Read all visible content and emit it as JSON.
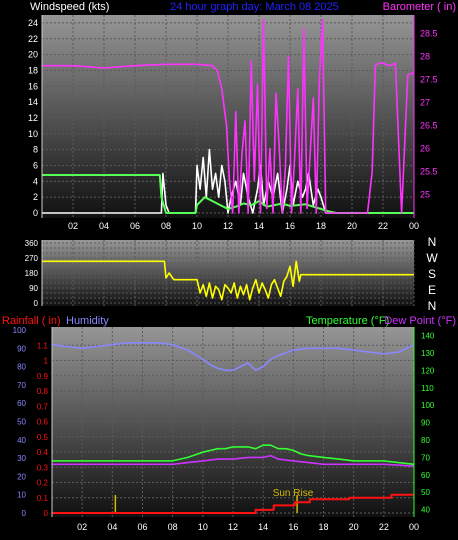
{
  "header": {
    "windspeed_label": "Windspeed (kts)",
    "graph_title": "24 hour graph day:  March 08 2025",
    "barometer_label": "Barometer ( in)"
  },
  "middle": {
    "compass_labels": [
      "N",
      "W",
      "S",
      "E",
      "N"
    ]
  },
  "bottom_header": {
    "rainfall_label": "Rainfall ( in)",
    "humidity_label": "Humidity",
    "temperature_label": "Temperature (°F)",
    "dewpoint_label": "Dew Point (°F)"
  },
  "colors": {
    "windspeed": "#ffffff",
    "wind_average": "#55ff55",
    "barometer": "#ff33ff",
    "direction": "#ffff00",
    "rainfall": "#ff1111",
    "humidity": "#8888ff",
    "temperature": "#33ff33",
    "dewpoint": "#cc33ff",
    "title": "#2222ff",
    "sunrise_marker": "#d4b800"
  },
  "chart_data": [
    {
      "type": "line",
      "title": "24 hour graph day:  March 08 2025",
      "x_ticks": [
        "02",
        "04",
        "06",
        "08",
        "10",
        "12",
        "14",
        "16",
        "18",
        "20",
        "22",
        "00"
      ],
      "xlim": [
        0,
        24
      ],
      "grid": true,
      "series": [
        {
          "name": "Windspeed (kts)",
          "axis": "left",
          "x": [
            0,
            7.7,
            7.8,
            8.0,
            8.2,
            8.5,
            9.0,
            9.5,
            9.9,
            10.0,
            10.2,
            10.4,
            10.6,
            10.8,
            11.0,
            11.2,
            11.4,
            11.6,
            11.8,
            12.0,
            12.2,
            12.5,
            12.8,
            13.0,
            13.3,
            13.6,
            13.9,
            14.1,
            14.3,
            14.6,
            14.9,
            15.2,
            15.5,
            15.8,
            16.0,
            16.2,
            16.5,
            16.8,
            17.0,
            17.2,
            17.5,
            17.8,
            18.0,
            18.3,
            18.6,
            19.0,
            24
          ],
          "values": [
            0,
            0,
            5,
            1,
            0,
            0,
            0,
            0,
            0,
            6,
            3,
            7,
            2,
            8,
            3,
            5,
            2,
            6,
            4,
            0,
            2,
            4,
            1,
            5,
            2,
            0,
            3,
            6,
            1,
            4,
            2,
            5,
            0,
            3,
            6,
            1,
            4,
            2,
            3,
            5,
            1,
            3,
            2,
            0,
            0,
            0,
            0
          ]
        },
        {
          "name": "Wind average",
          "axis": "left",
          "x": [
            0,
            7.6,
            7.7,
            8.0,
            9.9,
            10.0,
            10.5,
            11.0,
            11.5,
            12.0,
            12.5,
            13.0,
            13.5,
            14.0,
            14.5,
            15.0,
            15.5,
            16.0,
            16.5,
            17.0,
            17.5,
            18.0,
            18.5,
            19.0,
            24
          ],
          "values": [
            4.8,
            4.8,
            2,
            0,
            0,
            1,
            2,
            1.5,
            1,
            0.5,
            0.8,
            1.2,
            1,
            1.5,
            0.8,
            1,
            1.2,
            0.9,
            1,
            1.1,
            0.8,
            0.5,
            0.2,
            0,
            0
          ]
        },
        {
          "name": "Barometer ( in)",
          "axis": "right",
          "x": [
            0,
            2,
            4,
            6,
            8,
            10,
            11,
            11.3,
            11.6,
            11.9,
            12.1,
            12.3,
            12.5,
            12.7,
            12.9,
            13.1,
            13.3,
            13.5,
            13.7,
            13.9,
            14.1,
            14.3,
            14.5,
            14.7,
            14.9,
            15.1,
            15.3,
            15.5,
            15.7,
            15.9,
            16.1,
            16.3,
            16.5,
            16.7,
            16.9,
            17.1,
            17.3,
            17.5,
            17.7,
            17.9,
            18.1,
            18.3,
            18.5,
            18.7,
            18.9,
            19.3,
            20,
            21,
            21.3,
            21.5,
            21.7,
            22,
            22.4,
            22.8,
            23.2,
            23.6,
            24
          ],
          "values": [
            27.8,
            27.8,
            27.75,
            27.8,
            27.83,
            27.83,
            27.8,
            27.7,
            27.3,
            26.5,
            25.3,
            24.6,
            26.8,
            24.6,
            25.9,
            26.6,
            24.6,
            27.9,
            25.3,
            27.4,
            24.6,
            28.8,
            24.7,
            26.0,
            24.6,
            27.2,
            26.1,
            24.6,
            25.6,
            28.0,
            24.6,
            25.8,
            27.3,
            24.6,
            28.6,
            24.7,
            25.9,
            27.1,
            24.6,
            27.5,
            28.8,
            24.6,
            24.6,
            24.6,
            24.6,
            24.6,
            24.6,
            24.6,
            25.5,
            27.8,
            27.85,
            27.85,
            27.8,
            27.85,
            24.6,
            27.6,
            27.65
          ]
        }
      ],
      "ylim_left": [
        0,
        25
      ],
      "yticks_left": [
        "0",
        "2",
        "4",
        "6",
        "8",
        "10",
        "12",
        "14",
        "16",
        "18",
        "20",
        "22",
        "24"
      ],
      "ylim_right": [
        24.6,
        28.9
      ],
      "yticks_right": [
        "25",
        "25.5",
        "26",
        "26.5",
        "27",
        "27.5",
        "28",
        "28.5"
      ]
    },
    {
      "type": "scatter",
      "xlim": [
        0,
        24
      ],
      "series": [
        {
          "name": "Wind direction",
          "axis": "left",
          "x": [
            0,
            7.9,
            8.0,
            8.2,
            8.5,
            9.0,
            9.5,
            10.0,
            10.2,
            10.4,
            10.6,
            10.8,
            11.0,
            11.2,
            11.4,
            11.6,
            11.8,
            12.0,
            12.2,
            12.4,
            12.6,
            12.8,
            13.0,
            13.2,
            13.4,
            13.6,
            13.8,
            14.0,
            14.2,
            14.4,
            14.6,
            14.8,
            15.0,
            15.2,
            15.4,
            15.6,
            15.8,
            16.0,
            16.2,
            16.4,
            16.6,
            16.7,
            24
          ],
          "values": [
            250,
            250,
            150,
            180,
            140,
            140,
            140,
            140,
            60,
            110,
            40,
            120,
            30,
            100,
            80,
            20,
            110,
            90,
            60,
            120,
            30,
            100,
            50,
            110,
            20,
            90,
            140,
            60,
            120,
            80,
            30,
            110,
            140,
            90,
            40,
            130,
            160,
            220,
            100,
            250,
            130,
            170,
            170
          ]
        }
      ],
      "ylim": [
        0,
        360
      ],
      "yticks": [
        "0",
        "90",
        "180",
        "270",
        "360"
      ],
      "yticks_minor": [
        "30",
        "60",
        "120",
        "150",
        "210",
        "240",
        "300",
        "330"
      ],
      "right_labels": [
        "N",
        "W",
        "S",
        "E",
        "N"
      ]
    },
    {
      "type": "line",
      "xlim": [
        0,
        24
      ],
      "grid": true,
      "series": [
        {
          "name": "Humidity",
          "axis": "left2",
          "x": [
            0,
            1,
            2,
            3,
            4,
            5,
            6,
            7,
            8,
            9,
            10,
            10.5,
            11,
            11.5,
            12,
            12.5,
            13,
            13.5,
            14,
            14.5,
            15,
            16,
            17,
            18,
            19,
            20,
            21,
            22,
            23,
            24
          ],
          "values": [
            92,
            91,
            90,
            91,
            92,
            93,
            93,
            93,
            92,
            89,
            84,
            81,
            79,
            78,
            78,
            80,
            82,
            78,
            80,
            84,
            86,
            89,
            90,
            90,
            90,
            89,
            88,
            87,
            88,
            92
          ]
        },
        {
          "name": "Temperature (°F)",
          "axis": "right",
          "x": [
            0,
            2,
            4,
            6,
            7,
            8,
            9,
            10,
            10.5,
            11,
            11.5,
            12,
            12.5,
            13,
            13.5,
            14,
            14.5,
            15,
            15.5,
            16,
            16.5,
            17,
            18,
            19,
            20,
            22,
            24
          ],
          "values": [
            68,
            68,
            68,
            68,
            68,
            68,
            70,
            73,
            74,
            75,
            75,
            76,
            76,
            76,
            75,
            77,
            77,
            75,
            75,
            74,
            72,
            71,
            70,
            69,
            68,
            68,
            66
          ]
        },
        {
          "name": "Dew Point (°F)",
          "axis": "right",
          "x": [
            0,
            2,
            4,
            6,
            8,
            9,
            10,
            11,
            12,
            13,
            14,
            14.5,
            15,
            16,
            17,
            18,
            20,
            22,
            24
          ],
          "values": [
            66,
            66,
            66,
            66,
            66,
            67,
            68,
            69,
            69,
            70,
            70,
            71,
            69,
            68,
            67,
            66,
            66,
            66,
            65
          ]
        },
        {
          "name": "Rainfall ( in)",
          "axis": "left1",
          "x": [
            0,
            13.4,
            13.5,
            14.0,
            14.6,
            14.7,
            15.8,
            16.0,
            16.1,
            16.5,
            17.0,
            17.1,
            19.6,
            19.7,
            22.4,
            22.5,
            24
          ],
          "values": [
            0,
            0,
            0.02,
            0.02,
            0.02,
            0.05,
            0.05,
            0.05,
            0.07,
            0.07,
            0.07,
            0.09,
            0.09,
            0.1,
            0.1,
            0.12,
            0.12
          ]
        }
      ],
      "sunrise_time": 16.25,
      "sunrise_label": "Sun Rise",
      "marker_time": 4.2,
      "ylim_left1": [
        0,
        1.2
      ],
      "yticks_left1": [
        "0",
        "0.1",
        "0.2",
        "0.3",
        "0.4",
        "0.5",
        "0.6",
        "0.7",
        "0.8",
        "0.9",
        "1",
        "1.1"
      ],
      "ylim_left2": [
        0,
        100
      ],
      "yticks_left2": [
        "0",
        "10",
        "20",
        "30",
        "40",
        "50",
        "60",
        "70",
        "80",
        "90",
        "100"
      ],
      "ylim_right": [
        38,
        145
      ],
      "yticks_right": [
        "40",
        "50",
        "60",
        "70",
        "80",
        "90",
        "100",
        "110",
        "120",
        "130",
        "140"
      ]
    }
  ]
}
